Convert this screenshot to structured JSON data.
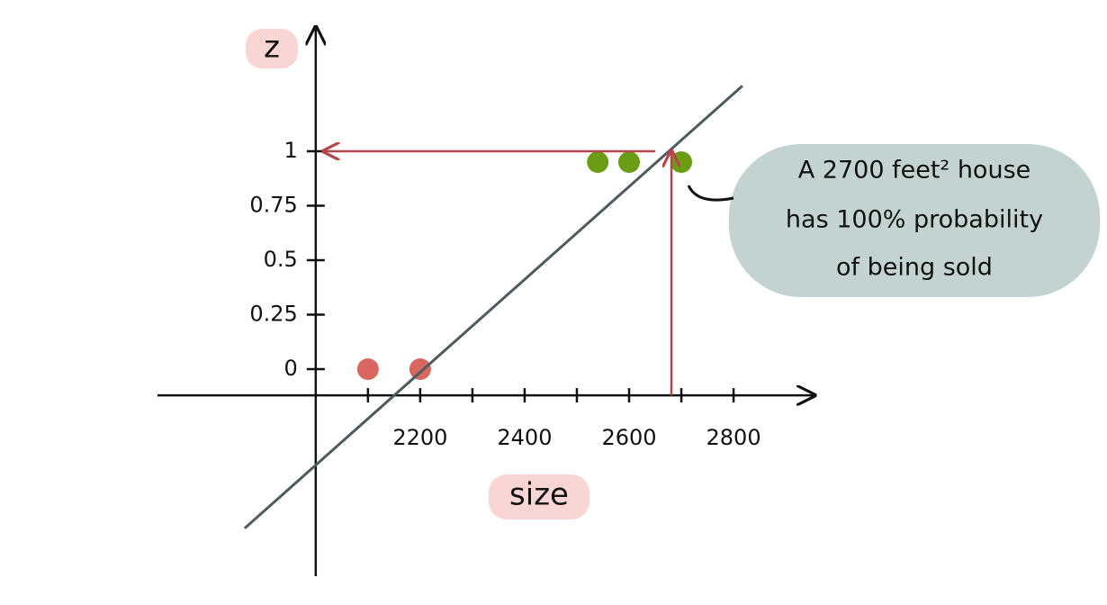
{
  "chart_data": {
    "type": "scatter",
    "xlabel": "size",
    "ylabel": "z",
    "xlim": [
      1697,
      2955
    ],
    "ylim": [
      -0.95,
      1.57
    ],
    "xticks": [
      2200,
      2400,
      2600,
      2800
    ],
    "xminor_ticks": [
      2100,
      2300,
      2500,
      2700
    ],
    "yticks": [
      0,
      0.25,
      0.5,
      0.75,
      1
    ],
    "x_axis_at": -0.12,
    "y_axis_at": 2000,
    "series": [
      {
        "type": "scatter",
        "color": "#d9665f",
        "x": [
          2100,
          2200
        ],
        "values": [
          0,
          0
        ]
      },
      {
        "type": "scatter",
        "color": "#6a9c14",
        "x": [
          2540,
          2600,
          2700
        ],
        "values": [
          0.95,
          0.95,
          0.95
        ]
      },
      {
        "type": "line",
        "color": "#4d5a5e",
        "x": [
          1864,
          2817
        ],
        "values": [
          -0.73,
          1.3
        ]
      }
    ],
    "arrows": [
      {
        "color": "#b5474b",
        "x": [
          2681,
          2681
        ],
        "y": [
          -0.12,
          1
        ]
      },
      {
        "color": "#b5474b",
        "x": [
          2650,
          2015
        ],
        "y": [
          1,
          1
        ]
      }
    ],
    "annotation": [
      "A 2700 feet² house",
      "has 100% probability",
      "of being sold"
    ]
  }
}
